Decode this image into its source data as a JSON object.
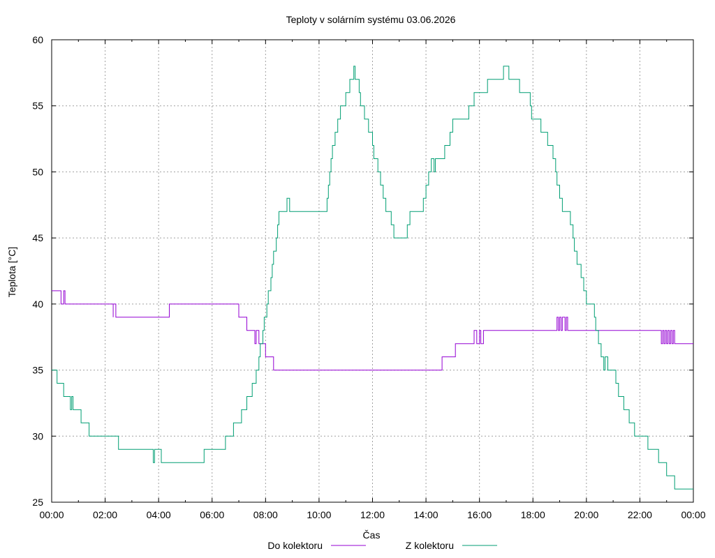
{
  "chart_data": {
    "type": "line",
    "title": "Teploty v solárním systému 03.06.2026",
    "xlabel": "Čas",
    "ylabel": "Teplota [°C]",
    "xlim": [
      0,
      24
    ],
    "ylim": [
      25,
      60
    ],
    "x_ticks": [
      "00:00",
      "02:00",
      "04:00",
      "06:00",
      "08:00",
      "10:00",
      "12:00",
      "14:00",
      "16:00",
      "18:00",
      "20:00",
      "22:00",
      "00:00"
    ],
    "y_ticks": [
      25,
      30,
      35,
      40,
      45,
      50,
      55,
      60
    ],
    "grid": true,
    "legend_position": "bottom-center",
    "series": [
      {
        "name": "Do kolektoru",
        "color": "#9400d3",
        "step": true,
        "points": [
          [
            0.0,
            41
          ],
          [
            0.3,
            41
          ],
          [
            0.35,
            40
          ],
          [
            0.45,
            41
          ],
          [
            0.5,
            40
          ],
          [
            1.0,
            40
          ],
          [
            2.2,
            40
          ],
          [
            2.3,
            39
          ],
          [
            2.3,
            40
          ],
          [
            2.4,
            39
          ],
          [
            4.4,
            39
          ],
          [
            4.4,
            40
          ],
          [
            4.5,
            40
          ],
          [
            6.9,
            40
          ],
          [
            7.0,
            39
          ],
          [
            7.2,
            39
          ],
          [
            7.3,
            38
          ],
          [
            7.55,
            38
          ],
          [
            7.6,
            37
          ],
          [
            7.65,
            38
          ],
          [
            7.75,
            37
          ],
          [
            7.95,
            37
          ],
          [
            8.0,
            36
          ],
          [
            8.3,
            36
          ],
          [
            8.3,
            35
          ],
          [
            8.6,
            35
          ],
          [
            8.8,
            35
          ],
          [
            8.8,
            35
          ],
          [
            14.6,
            35
          ],
          [
            14.6,
            36
          ],
          [
            15.1,
            36
          ],
          [
            15.1,
            37
          ],
          [
            15.5,
            37
          ],
          [
            15.7,
            37
          ],
          [
            15.8,
            38
          ],
          [
            15.9,
            37
          ],
          [
            16.0,
            38
          ],
          [
            16.05,
            37
          ],
          [
            16.15,
            38
          ],
          [
            16.3,
            38
          ],
          [
            18.85,
            38
          ],
          [
            18.9,
            39
          ],
          [
            18.95,
            38
          ],
          [
            19.0,
            39
          ],
          [
            19.05,
            38
          ],
          [
            19.1,
            39
          ],
          [
            19.2,
            38
          ],
          [
            19.25,
            39
          ],
          [
            19.3,
            38
          ],
          [
            22.8,
            38
          ],
          [
            22.8,
            37
          ],
          [
            22.85,
            38
          ],
          [
            22.9,
            37
          ],
          [
            22.95,
            38
          ],
          [
            23.0,
            37
          ],
          [
            23.05,
            38
          ],
          [
            23.1,
            37
          ],
          [
            23.15,
            38
          ],
          [
            23.2,
            37
          ],
          [
            23.25,
            38
          ],
          [
            23.3,
            37
          ],
          [
            24.0,
            37
          ]
        ]
      },
      {
        "name": "Z kolektoru",
        "color": "#009e73",
        "step": true,
        "points": [
          [
            0.0,
            35
          ],
          [
            0.2,
            35
          ],
          [
            0.2,
            34
          ],
          [
            0.45,
            34
          ],
          [
            0.45,
            33
          ],
          [
            0.65,
            33
          ],
          [
            0.7,
            32
          ],
          [
            0.75,
            33
          ],
          [
            0.8,
            32
          ],
          [
            1.1,
            32
          ],
          [
            1.1,
            31
          ],
          [
            1.4,
            31
          ],
          [
            1.4,
            30
          ],
          [
            2.5,
            30
          ],
          [
            2.5,
            29
          ],
          [
            3.3,
            29
          ],
          [
            3.75,
            29
          ],
          [
            3.8,
            28
          ],
          [
            3.85,
            29
          ],
          [
            4.1,
            29
          ],
          [
            4.1,
            28
          ],
          [
            4.2,
            28
          ],
          [
            5.0,
            28
          ],
          [
            5.7,
            28
          ],
          [
            5.7,
            29
          ],
          [
            6.3,
            29
          ],
          [
            6.5,
            29
          ],
          [
            6.5,
            30
          ],
          [
            6.8,
            30
          ],
          [
            6.8,
            31
          ],
          [
            7.0,
            31
          ],
          [
            7.1,
            32
          ],
          [
            7.3,
            32
          ],
          [
            7.3,
            33
          ],
          [
            7.45,
            33
          ],
          [
            7.5,
            34
          ],
          [
            7.6,
            34
          ],
          [
            7.65,
            35
          ],
          [
            7.75,
            36
          ],
          [
            7.8,
            37
          ],
          [
            7.9,
            38
          ],
          [
            7.95,
            39
          ],
          [
            8.05,
            40
          ],
          [
            8.1,
            41
          ],
          [
            8.2,
            42
          ],
          [
            8.25,
            43
          ],
          [
            8.3,
            44
          ],
          [
            8.4,
            45
          ],
          [
            8.45,
            46
          ],
          [
            8.5,
            47
          ],
          [
            8.75,
            47
          ],
          [
            8.8,
            48
          ],
          [
            8.9,
            48
          ],
          [
            8.9,
            47
          ],
          [
            10.3,
            47
          ],
          [
            10.3,
            48
          ],
          [
            10.35,
            49
          ],
          [
            10.4,
            50
          ],
          [
            10.45,
            51
          ],
          [
            10.5,
            52
          ],
          [
            10.6,
            53
          ],
          [
            10.7,
            54
          ],
          [
            10.8,
            55
          ],
          [
            11.0,
            55
          ],
          [
            11.0,
            56
          ],
          [
            11.1,
            56
          ],
          [
            11.15,
            57
          ],
          [
            11.25,
            57
          ],
          [
            11.3,
            58
          ],
          [
            11.35,
            57
          ],
          [
            11.5,
            57
          ],
          [
            11.5,
            56
          ],
          [
            11.55,
            55
          ],
          [
            11.65,
            55
          ],
          [
            11.7,
            54
          ],
          [
            11.85,
            53
          ],
          [
            12.0,
            52
          ],
          [
            12.05,
            51
          ],
          [
            12.2,
            50
          ],
          [
            12.3,
            49
          ],
          [
            12.4,
            48
          ],
          [
            12.5,
            47
          ],
          [
            12.7,
            46
          ],
          [
            12.8,
            45
          ],
          [
            13.2,
            45
          ],
          [
            13.3,
            46
          ],
          [
            13.4,
            47
          ],
          [
            13.6,
            47
          ],
          [
            13.9,
            47
          ],
          [
            13.9,
            48
          ],
          [
            14.0,
            49
          ],
          [
            14.1,
            50
          ],
          [
            14.2,
            51
          ],
          [
            14.3,
            51
          ],
          [
            14.3,
            50
          ],
          [
            14.35,
            51
          ],
          [
            14.5,
            51
          ],
          [
            14.7,
            52
          ],
          [
            14.9,
            53
          ],
          [
            15.0,
            54
          ],
          [
            15.6,
            54
          ],
          [
            15.6,
            55
          ],
          [
            15.75,
            55
          ],
          [
            15.8,
            56
          ],
          [
            16.2,
            56
          ],
          [
            16.3,
            57
          ],
          [
            16.9,
            57
          ],
          [
            16.9,
            58
          ],
          [
            17.05,
            58
          ],
          [
            17.1,
            57
          ],
          [
            17.5,
            57
          ],
          [
            17.5,
            56
          ],
          [
            17.8,
            56
          ],
          [
            17.9,
            55
          ],
          [
            17.95,
            54
          ],
          [
            18.3,
            54
          ],
          [
            18.3,
            53
          ],
          [
            18.55,
            52
          ],
          [
            18.75,
            51
          ],
          [
            18.85,
            50
          ],
          [
            18.9,
            49
          ],
          [
            19.0,
            48
          ],
          [
            19.1,
            47
          ],
          [
            19.3,
            47
          ],
          [
            19.4,
            46
          ],
          [
            19.5,
            45
          ],
          [
            19.55,
            44
          ],
          [
            19.65,
            43
          ],
          [
            19.8,
            42
          ],
          [
            19.9,
            41
          ],
          [
            20.0,
            40
          ],
          [
            20.2,
            40
          ],
          [
            20.3,
            39
          ],
          [
            20.35,
            38
          ],
          [
            20.45,
            37
          ],
          [
            20.55,
            36
          ],
          [
            20.65,
            35
          ],
          [
            20.7,
            36
          ],
          [
            20.8,
            35
          ],
          [
            21.05,
            35
          ],
          [
            21.1,
            34
          ],
          [
            21.2,
            33
          ],
          [
            21.4,
            32
          ],
          [
            21.6,
            31
          ],
          [
            21.8,
            30
          ],
          [
            22.2,
            30
          ],
          [
            22.3,
            29
          ],
          [
            22.6,
            29
          ],
          [
            22.7,
            28
          ],
          [
            22.9,
            28
          ],
          [
            23.0,
            27
          ],
          [
            23.3,
            27
          ],
          [
            23.3,
            26
          ],
          [
            23.6,
            26
          ],
          [
            24.0,
            26
          ]
        ]
      }
    ]
  }
}
